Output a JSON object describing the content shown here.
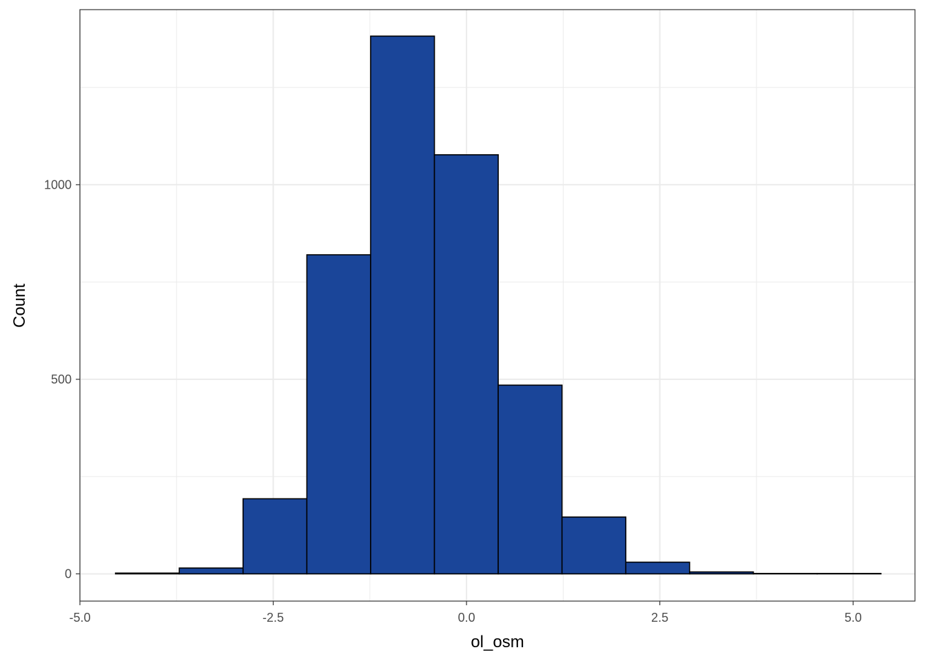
{
  "chart_data": {
    "type": "bar",
    "subtype": "histogram",
    "xlabel": "ol_osm",
    "ylabel": "Count",
    "xlim": [
      -5.0,
      5.8
    ],
    "ylim": [
      -70,
      1450
    ],
    "x_ticks": [
      "-5.0",
      "-2.5",
      "0.0",
      "2.5",
      "5.0"
    ],
    "x_tick_values": [
      -5.0,
      -2.5,
      0.0,
      2.5,
      5.0
    ],
    "y_ticks": [
      "0",
      "500",
      "1000"
    ],
    "y_tick_values": [
      0,
      500,
      1000
    ],
    "y_minor_gridlines": [
      250,
      750,
      1250
    ],
    "x_minor_gridlines": [
      -3.75,
      -1.25,
      1.25,
      3.75
    ],
    "grid": true,
    "bin_edges": [
      -4.54,
      -3.715,
      -2.89,
      -2.065,
      -1.24,
      -0.415,
      0.41,
      1.235,
      2.06,
      2.885,
      3.71,
      4.535,
      5.36
    ],
    "values": [
      2,
      15,
      193,
      820,
      1382,
      1077,
      485,
      146,
      30,
      5,
      1,
      1
    ],
    "colors": {
      "bar_fill": "#1a4599",
      "bar_stroke": "#000000",
      "grid": "#ebebeb",
      "panel_border": "#333333"
    }
  }
}
